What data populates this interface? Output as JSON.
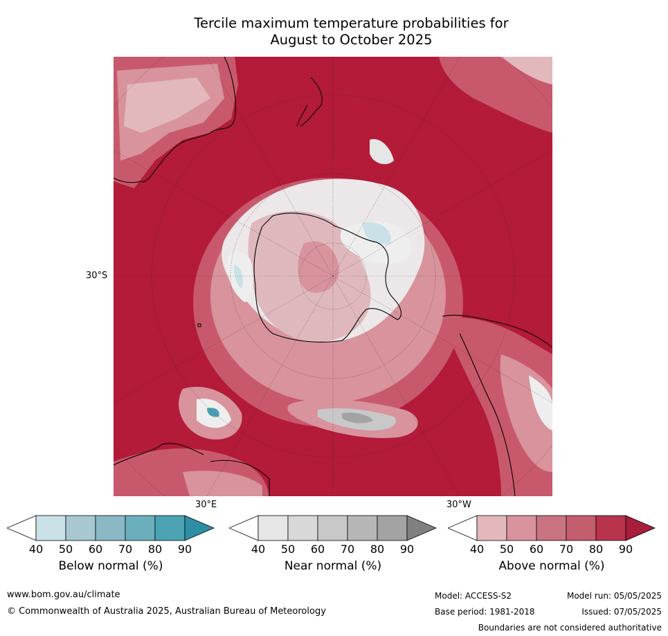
{
  "title": {
    "line1": "Tercile maximum temperature probabilities for",
    "line2": "August to October 2025"
  },
  "map": {
    "lat_label": "30°S",
    "lon_labels": {
      "east": "30°E",
      "west": "30°W"
    },
    "projection": "south polar stereographic",
    "dominant_category": "Above normal",
    "colors": {
      "above_dark": "#b31b39",
      "above_mid": "#c8596c",
      "above_light": "#d8939d",
      "above_pale": "#e3b8bd",
      "near_light": "#e6e6e6",
      "near_mid": "#b5b5b5",
      "below_light": "#c9e1e7",
      "below_mid": "#8cbcc8",
      "below_dark": "#4b9fb1",
      "land_outline": "#000000"
    }
  },
  "colorbars": [
    {
      "label": "Below normal (%)",
      "ticks": [
        "40",
        "50",
        "60",
        "70",
        "80",
        "90"
      ],
      "colors": [
        "#ffffff",
        "#c9e1e7",
        "#a7c8cf",
        "#8ab8c5",
        "#6bafbd",
        "#4ba3b3",
        "#2e8fa4"
      ]
    },
    {
      "label": "Near normal (%)",
      "ticks": [
        "40",
        "50",
        "60",
        "70",
        "80",
        "90"
      ],
      "colors": [
        "#ffffff",
        "#e6e6e6",
        "#d8d8d8",
        "#c8c8c8",
        "#b6b6b6",
        "#a3a3a3",
        "#808080"
      ]
    },
    {
      "label": "Above normal (%)",
      "ticks": [
        "40",
        "50",
        "60",
        "70",
        "80",
        "90"
      ],
      "colors": [
        "#ffffff",
        "#e3b8bd",
        "#d8939d",
        "#c97480",
        "#c45d6d",
        "#b8344d",
        "#a81c3c"
      ]
    }
  ],
  "footer": {
    "website": "www.bom.gov.au/climate",
    "copyright": "© Commonwealth of Australia 2025, Australian Bureau of Meteorology",
    "model": "Model: ACCESS-S2",
    "model_run": "Model run: 05/05/2025",
    "base_period": "Base period: 1981-2018",
    "issued": "Issued: 07/05/2025",
    "disclaimer": "Boundaries are not considered authoritative"
  }
}
